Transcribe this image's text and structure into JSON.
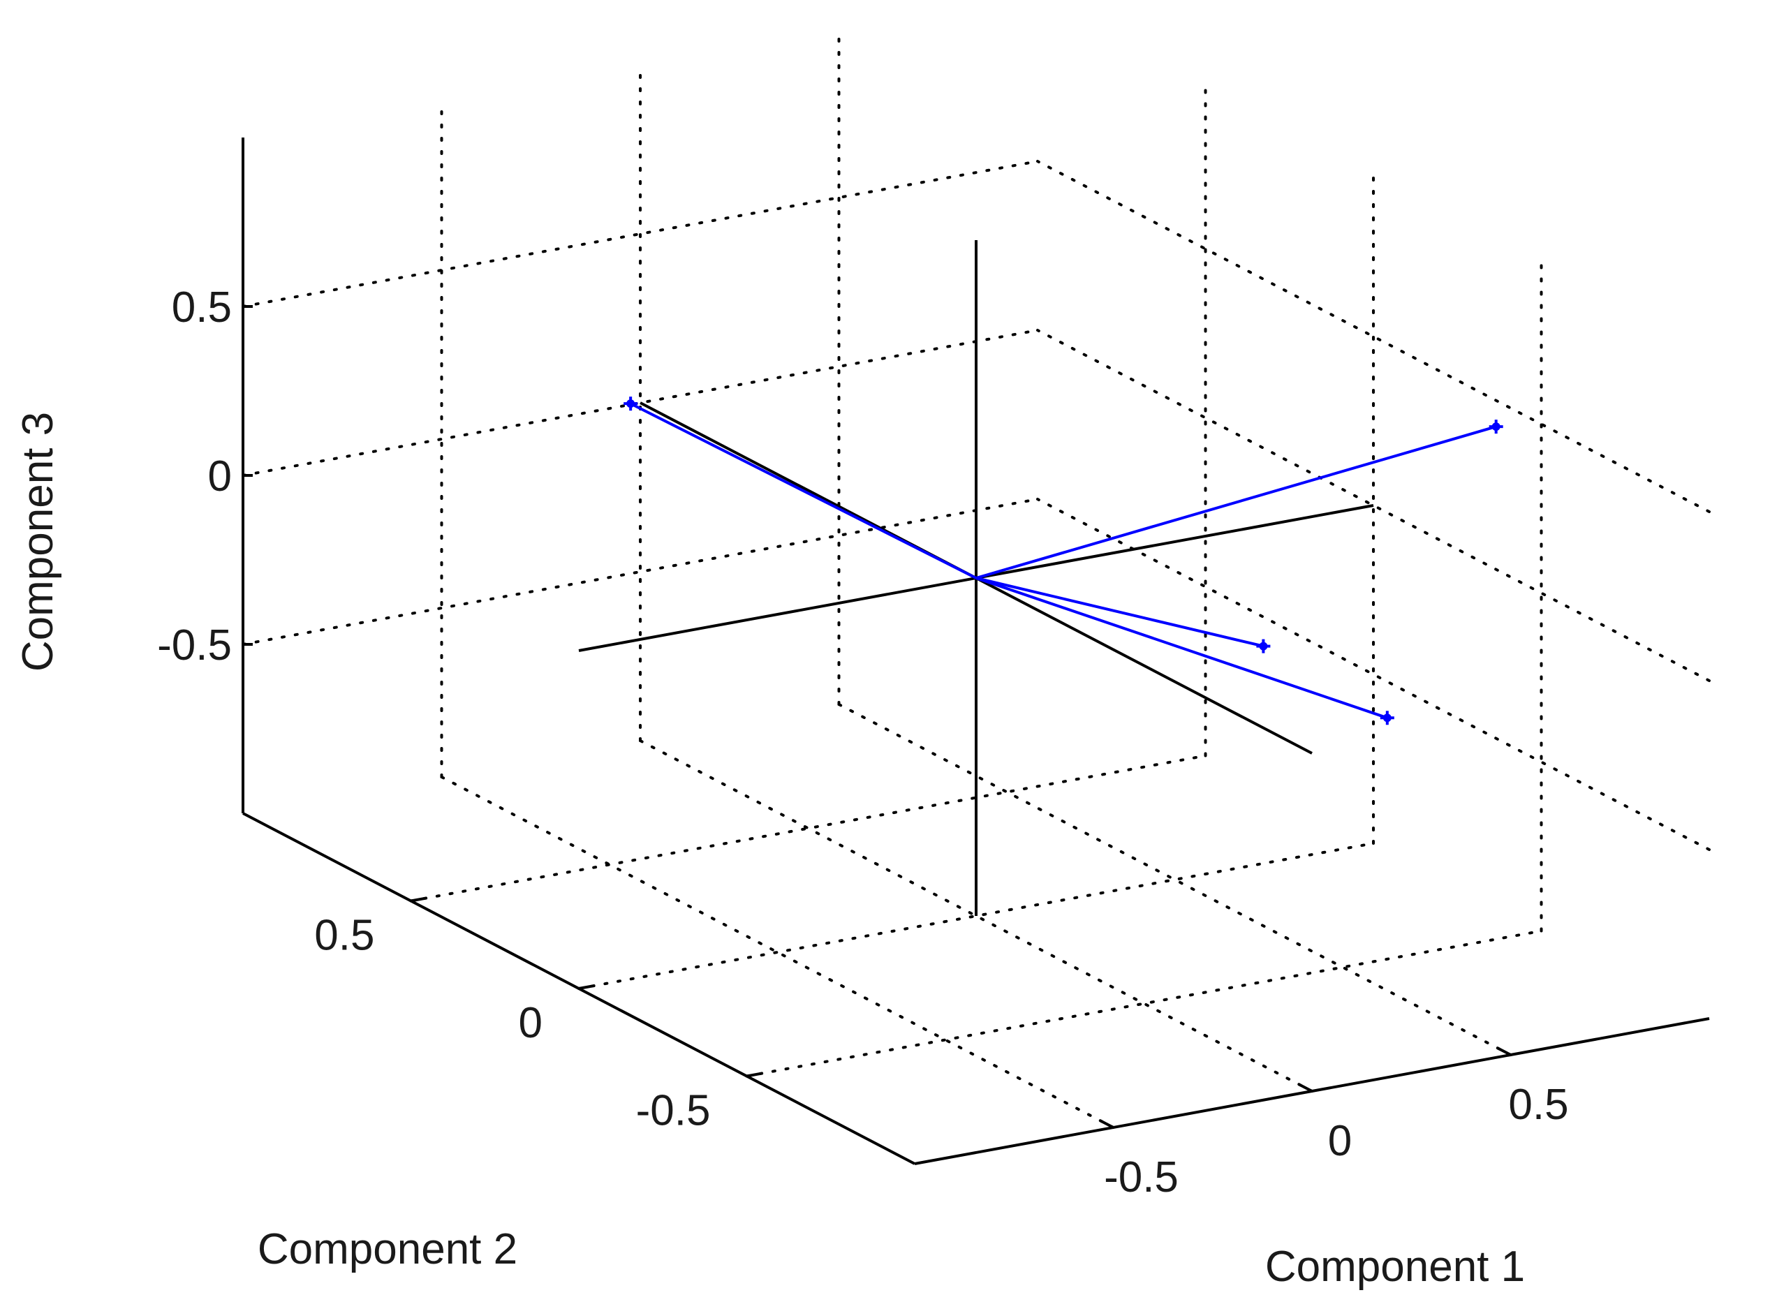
{
  "chart_data": {
    "type": "biplot-3d",
    "title": "",
    "xlabel": "Component 1",
    "ylabel": "Component 2",
    "zlabel": "Component 3",
    "xlim": [
      -1,
      1
    ],
    "ylim": [
      -1,
      1
    ],
    "zlim": [
      -1,
      1
    ],
    "xticks": [
      {
        "value": -0.5,
        "label": "-0.5"
      },
      {
        "value": 0,
        "label": "0"
      },
      {
        "value": 0.5,
        "label": "0.5"
      }
    ],
    "yticks": [
      {
        "value": -0.5,
        "label": "-0.5"
      },
      {
        "value": 0,
        "label": "0"
      },
      {
        "value": 0.5,
        "label": "0.5"
      }
    ],
    "zticks": [
      {
        "value": -0.5,
        "label": "-0.5"
      },
      {
        "value": 0,
        "label": "0"
      },
      {
        "value": 0.5,
        "label": "0.5"
      }
    ],
    "grid": true,
    "reference_axes": true,
    "vector_color": "#0000ff",
    "vectors": [
      {
        "x": 0.81,
        "y": -0.59,
        "z": 0.58
      },
      {
        "x": -0.54,
        "y": 0.39,
        "z": 0.43
      },
      {
        "x": 0.46,
        "y": -0.68,
        "z": -0.16
      },
      {
        "x": 0.63,
        "y": -0.11,
        "z": -0.28
      }
    ]
  }
}
